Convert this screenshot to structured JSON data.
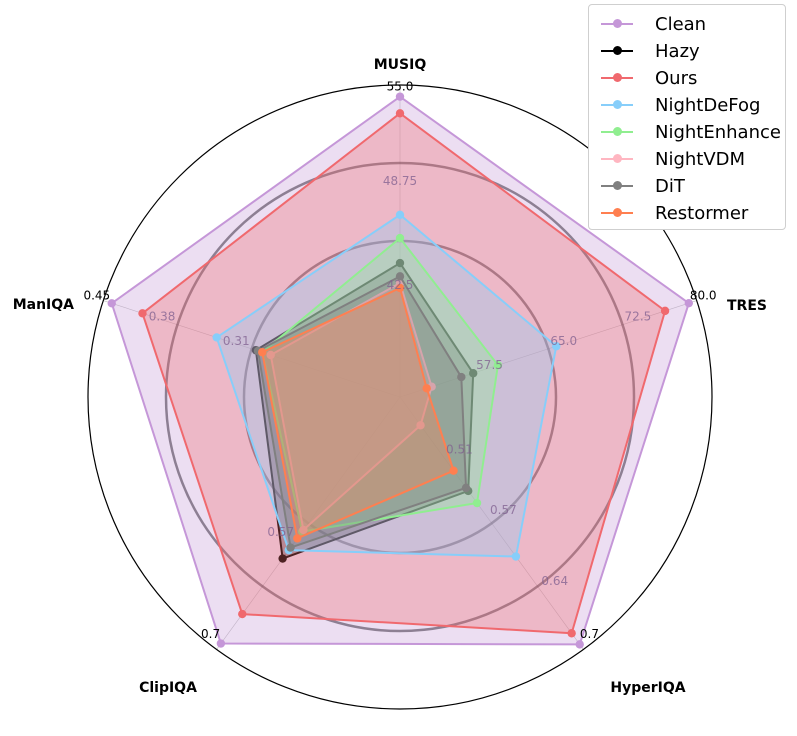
{
  "chart_data": {
    "type": "radar",
    "axes": [
      "MUSIQ",
      "TRES",
      "HyperIQA",
      "ClipIQA",
      "ManIQA"
    ],
    "axis_ranges": [
      {
        "min": 36.25,
        "max": 55.0
      },
      {
        "min": 50.0,
        "max": 80.0
      },
      {
        "min": 0.45,
        "max": 0.7
      },
      {
        "min": 0.4,
        "max": 0.7
      },
      {
        "min": 0.17,
        "max": 0.45
      }
    ],
    "tick_labels": [
      [
        "55.0",
        "48.75",
        "42.5"
      ],
      [
        "80.0",
        "72.5",
        "65.0",
        "57.5"
      ],
      [
        "0.7",
        "0.64",
        "0.57",
        "0.51"
      ],
      [
        "0.7",
        "0.57"
      ],
      [
        "0.45",
        "0.38",
        "0.31"
      ]
    ],
    "series": [
      {
        "name": "Clean",
        "color": "#c597d8",
        "values": [
          54.3,
          79.2,
          0.695,
          0.693,
          0.442
        ]
      },
      {
        "name": "Hazy",
        "color": "#000000",
        "values": [
          44.3,
          57.4,
          0.543,
          0.592,
          0.306
        ]
      },
      {
        "name": "Ours",
        "color": "#f0696e",
        "values": [
          53.3,
          76.8,
          0.684,
          0.658,
          0.413
        ]
      },
      {
        "name": "NightDeFog",
        "color": "#87cefa",
        "values": [
          47.2,
          65.8,
          0.608,
          0.582,
          0.343
        ]
      },
      {
        "name": "NightEnhance",
        "color": "#90ee90",
        "values": [
          45.8,
          59.9,
          0.555,
          0.56,
          0.3
        ]
      },
      {
        "name": "NightVDM",
        "color": "#ffb6c1",
        "values": [
          43.1,
          53.2,
          0.478,
          0.558,
          0.292
        ]
      },
      {
        "name": "DiT",
        "color": "#808080",
        "values": [
          43.5,
          56.2,
          0.54,
          0.579,
          0.304
        ]
      },
      {
        "name": "Restormer",
        "color": "#ff7f50",
        "values": [
          42.8,
          52.7,
          0.523,
          0.568,
          0.3
        ]
      }
    ],
    "legend_position": "top-right",
    "grid": true
  }
}
